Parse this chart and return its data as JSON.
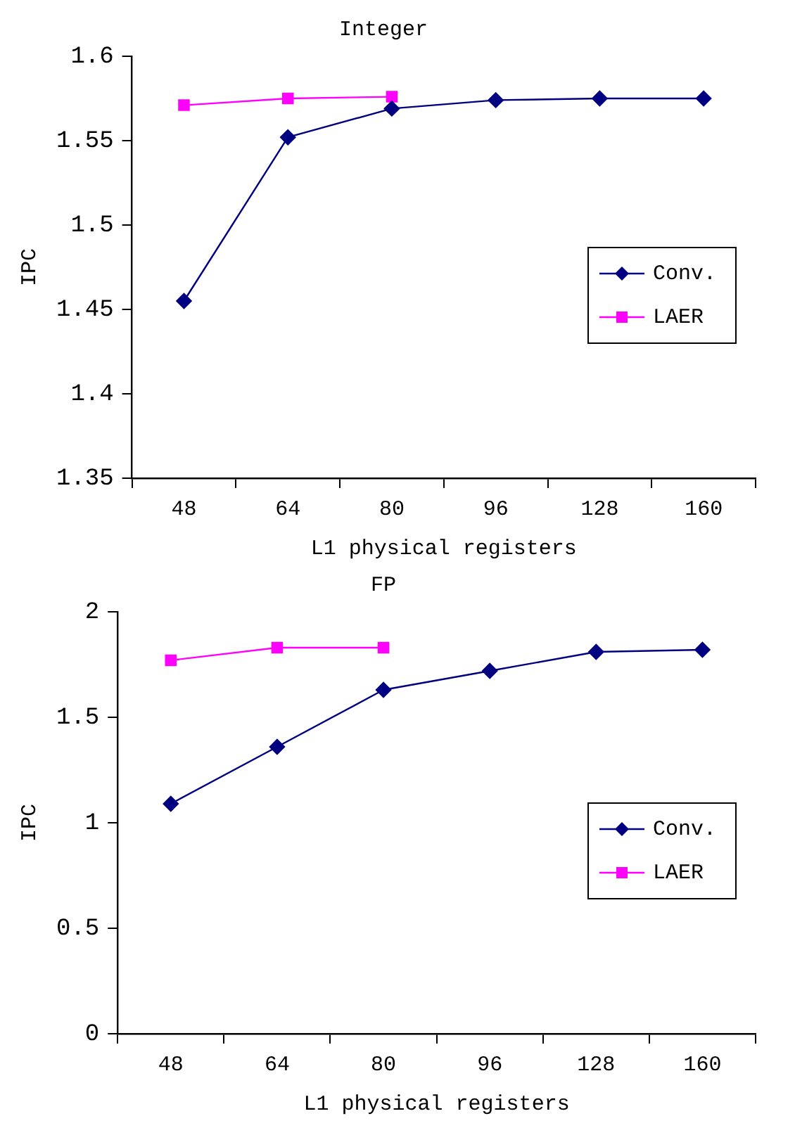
{
  "chart_data": [
    {
      "type": "line",
      "title": "Integer",
      "xlabel": "L1 physical registers",
      "ylabel": "IPC",
      "categories": [
        "48",
        "64",
        "80",
        "96",
        "128",
        "160"
      ],
      "series": [
        {
          "name": "Conv.",
          "color": "#000080",
          "marker": "diamond",
          "values": [
            1.455,
            1.552,
            1.569,
            1.574,
            1.575,
            1.575
          ]
        },
        {
          "name": "LAER",
          "color": "#ff00ff",
          "marker": "square",
          "values": [
            1.571,
            1.575,
            1.576,
            null,
            null,
            null
          ]
        }
      ],
      "ylim": [
        1.35,
        1.6
      ],
      "yticks": [
        1.35,
        1.4,
        1.45,
        1.5,
        1.55,
        1.6
      ],
      "grid": false,
      "legend": "right",
      "line_style": "solid"
    },
    {
      "type": "line",
      "title": "FP",
      "xlabel": "L1 physical registers",
      "ylabel": "IPC",
      "categories": [
        "48",
        "64",
        "80",
        "96",
        "128",
        "160"
      ],
      "series": [
        {
          "name": "Conv.",
          "color": "#000080",
          "marker": "diamond",
          "values": [
            1.09,
            1.36,
            1.63,
            1.72,
            1.81,
            1.82
          ]
        },
        {
          "name": "LAER",
          "color": "#ff00ff",
          "marker": "square",
          "values": [
            1.77,
            1.83,
            1.83,
            null,
            null,
            null
          ]
        }
      ],
      "ylim": [
        0,
        2
      ],
      "yticks": [
        0,
        0.5,
        1,
        1.5,
        2
      ],
      "grid": false,
      "legend": "right",
      "line_style": "solid"
    }
  ]
}
